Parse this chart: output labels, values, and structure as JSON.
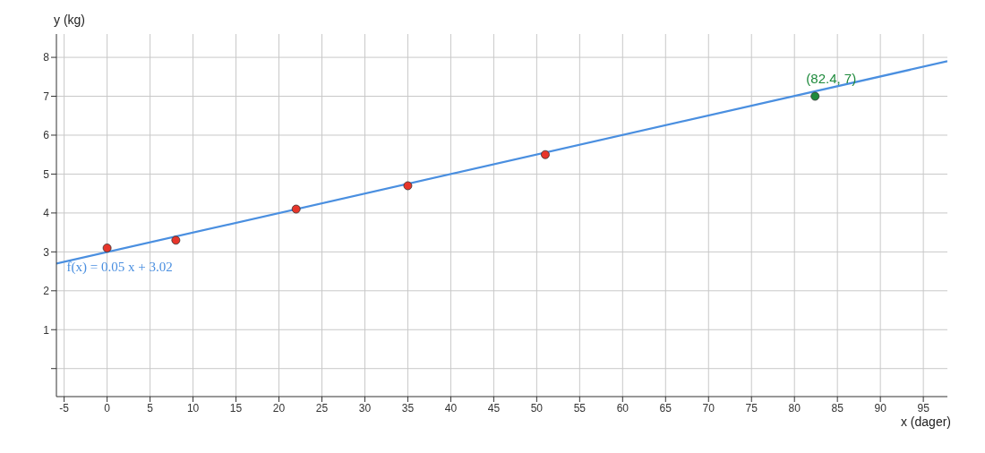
{
  "chart_data": {
    "type": "scatter",
    "xlabel": "x (dager)",
    "ylabel": "y (kg)",
    "xlim": [
      -5.9,
      97.8
    ],
    "ylim": [
      -0.72,
      8.6
    ],
    "xticks": [
      -5,
      0,
      5,
      10,
      15,
      20,
      25,
      30,
      35,
      40,
      45,
      50,
      55,
      60,
      65,
      70,
      75,
      80,
      85,
      90,
      95
    ],
    "yticks": [
      {
        "value": 0,
        "label": null
      },
      1,
      2,
      3,
      4,
      5,
      6,
      7,
      8
    ],
    "grid": true,
    "marker": "circle",
    "series": [
      {
        "type": "line",
        "color": "#4a8fe0",
        "x": [
          -5.9,
          97.8
        ],
        "values": [
          2.7,
          7.9
        ],
        "marker": "none"
      },
      {
        "color": "#e8352a",
        "x": [
          0,
          8,
          22,
          35,
          51
        ],
        "values": [
          3.1,
          3.3,
          4.1,
          4.7,
          5.5
        ]
      },
      {
        "color": "#1e8a3c",
        "x": [
          82.4
        ],
        "values": [
          7
        ]
      }
    ],
    "annotations": [
      {
        "text": "f(x) = 0.05 x + 3.02",
        "x": 0,
        "y": 3.02
      },
      {
        "text": "(82.4, 7)",
        "x": 82.4,
        "y": 7
      }
    ]
  }
}
